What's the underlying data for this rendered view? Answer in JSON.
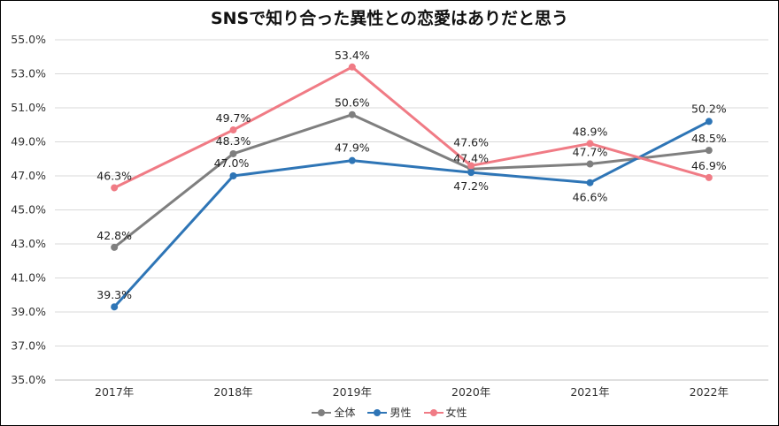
{
  "chart_data": {
    "type": "line",
    "title": "SNSで知り合った異性との恋愛はありだと思う",
    "xlabel": "",
    "ylabel": "",
    "categories": [
      "2017年",
      "2018年",
      "2019年",
      "2020年",
      "2021年",
      "2022年"
    ],
    "ylim": [
      35.0,
      55.0
    ],
    "yticks": [
      "35.0%",
      "37.0%",
      "39.0%",
      "41.0%",
      "43.0%",
      "45.0%",
      "47.0%",
      "49.0%",
      "51.0%",
      "53.0%",
      "55.0%"
    ],
    "grid": true,
    "legend_position": "bottom",
    "series": [
      {
        "name": "全体",
        "color": "#7f7f7f",
        "values": [
          42.8,
          48.3,
          50.6,
          47.4,
          47.7,
          48.5
        ],
        "labels": [
          "42.8%",
          "48.3%",
          "50.6%",
          "47.4%",
          "47.7%",
          "48.5%"
        ]
      },
      {
        "name": "男性",
        "color": "#2e75b6",
        "values": [
          39.3,
          47.0,
          47.9,
          47.2,
          46.6,
          50.2
        ],
        "labels": [
          "39.3%",
          "47.0%",
          "47.9%",
          "47.2%",
          "46.6%",
          "50.2%"
        ]
      },
      {
        "name": "女性",
        "color": "#f07b85",
        "values": [
          46.3,
          49.7,
          53.4,
          47.6,
          48.9,
          46.9
        ],
        "labels": [
          "46.3%",
          "49.7%",
          "53.4%",
          "47.6%",
          "48.9%",
          "46.9%"
        ]
      }
    ]
  }
}
